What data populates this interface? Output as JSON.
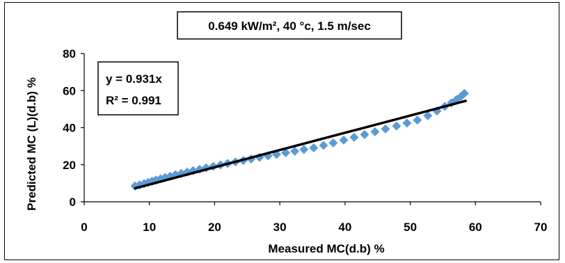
{
  "chart_data": {
    "type": "scatter",
    "title": "0.649 kW/m², 40 °c, 1.5 m/sec",
    "xlabel": "Measured MC(d.b) %",
    "ylabel": "Predicted MC (L)(d.b) %",
    "xlim": [
      0,
      70
    ],
    "ylim": [
      0,
      80
    ],
    "xticks": [
      "0",
      "10",
      "20",
      "30",
      "40",
      "50",
      "60",
      "70"
    ],
    "yticks": [
      "0",
      "20",
      "40",
      "60",
      "80"
    ],
    "grid": false,
    "legend": "none",
    "annotation": {
      "equation": "y = 0.931x",
      "r_squared": "R² = 0.991"
    },
    "series": [
      {
        "marker": "diamond",
        "color": "#5b9bd5",
        "x": [
          7.8,
          8.5,
          9.2,
          9.8,
          10.4,
          11.0,
          11.7,
          12.4,
          13.2,
          14.0,
          14.9,
          15.8,
          16.7,
          17.7,
          18.7,
          19.8,
          20.9,
          22.0,
          23.2,
          24.4,
          25.6,
          26.9,
          28.2,
          29.5,
          30.9,
          32.3,
          33.7,
          35.2,
          36.7,
          38.2,
          39.8,
          41.4,
          43.0,
          44.6,
          46.2,
          47.9,
          49.5,
          51.1,
          52.7,
          54.1,
          55.3,
          56.3,
          57.1,
          57.8,
          58.3
        ],
        "y": [
          8.5,
          9.1,
          9.8,
          10.4,
          11.1,
          11.7,
          12.4,
          13.1,
          13.8,
          14.6,
          15.3,
          16.0,
          16.8,
          17.5,
          18.3,
          19.1,
          19.9,
          20.7,
          21.5,
          22.3,
          23.1,
          24.0,
          24.8,
          25.6,
          26.5,
          27.3,
          28.2,
          29.1,
          30.4,
          31.8,
          33.3,
          34.8,
          36.3,
          37.8,
          39.3,
          40.9,
          42.5,
          44.1,
          46.5,
          49.0,
          51.5,
          53.4,
          55.2,
          56.9,
          58.5
        ]
      }
    ],
    "trendline": {
      "slope": 0.931,
      "x_range": [
        7.8,
        58.5
      ],
      "color": "#000000"
    }
  }
}
